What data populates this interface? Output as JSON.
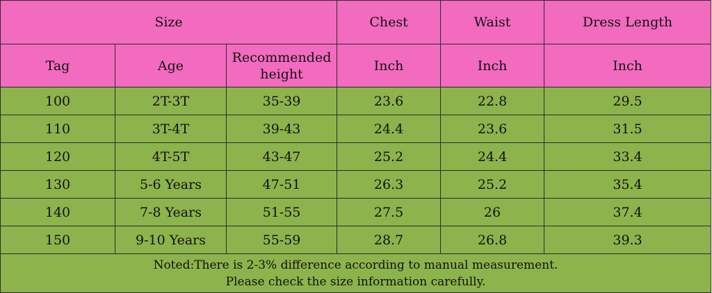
{
  "header": {
    "size": "Size",
    "chest": "Chest",
    "waist": "Waist",
    "dress_length": "Dress Length",
    "tag": "Tag",
    "age": "Age",
    "height_line1": "Recommended",
    "height_line2": "height",
    "chest_unit": "Inch",
    "waist_unit": "Inch",
    "dress_length_unit": "Inch"
  },
  "rows": [
    {
      "tag": "100",
      "age": "2T-3T",
      "height": "35-39",
      "chest": "23.6",
      "waist": "22.8",
      "length": "29.5"
    },
    {
      "tag": "110",
      "age": "3T-4T",
      "height": "39-43",
      "chest": "24.4",
      "waist": "23.6",
      "length": "31.5"
    },
    {
      "tag": "120",
      "age": "4T-5T",
      "height": "43-47",
      "chest": "25.2",
      "waist": "24.4",
      "length": "33.4"
    },
    {
      "tag": "130",
      "age": "5-6 Years",
      "height": "47-51",
      "chest": "26.3",
      "waist": "25.2",
      "length": "35.4"
    },
    {
      "tag": "140",
      "age": "7-8 Years",
      "height": "51-55",
      "chest": "27.5",
      "waist": "26",
      "length": "37.4"
    },
    {
      "tag": "150",
      "age": "9-10 Years",
      "height": "55-59",
      "chest": "28.7",
      "waist": "26.8",
      "length": "39.3"
    }
  ],
  "note": {
    "line1": "Noted:There is 2-3% difference according to manual measurement.",
    "line2": "Please check the size information carefully."
  },
  "colors": {
    "header_bg": "#f26bbf",
    "body_bg": "#8db34c",
    "border": "#2b2b2b"
  }
}
